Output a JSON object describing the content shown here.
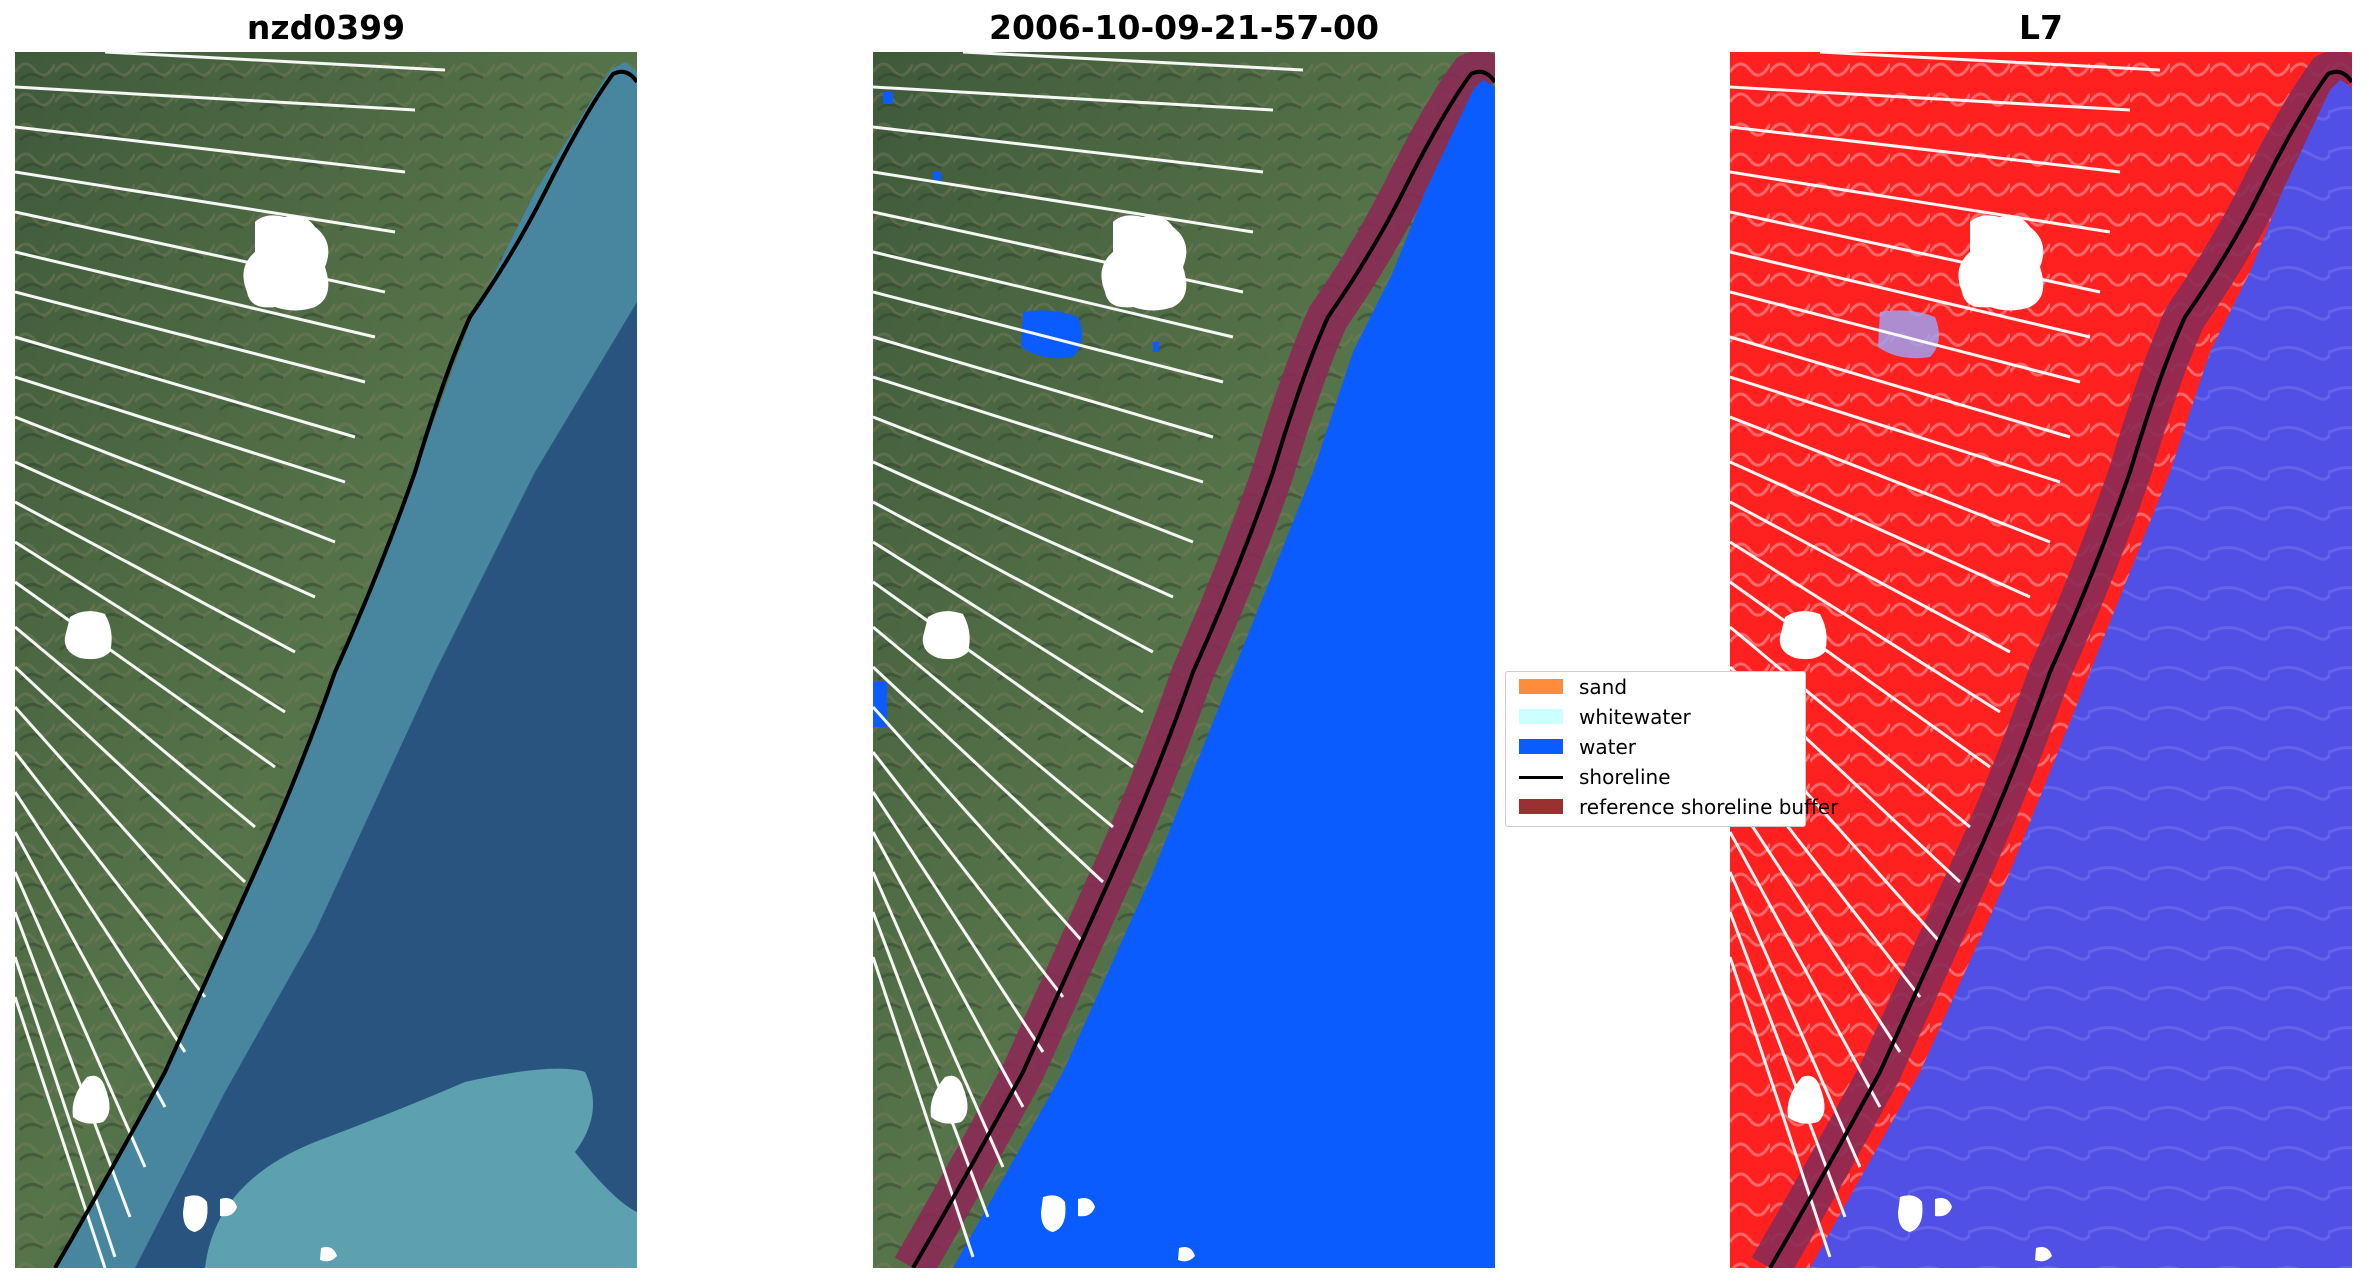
{
  "panels": [
    {
      "title": "nzd0399"
    },
    {
      "title": "2006-10-09-21-57-00"
    },
    {
      "title": "L7"
    }
  ],
  "legend": {
    "items": [
      {
        "label": "sand",
        "color": "#ff8c3a",
        "kind": "patch"
      },
      {
        "label": "whitewater",
        "color": "#ccffff",
        "kind": "patch"
      },
      {
        "label": "water",
        "color": "#0a5cff",
        "kind": "patch"
      },
      {
        "label": "shoreline",
        "color": "#000000",
        "kind": "line"
      },
      {
        "label": "reference shoreline buffer",
        "color": "#9a3030",
        "kind": "patch"
      }
    ]
  },
  "colors": {
    "land_rgb": "#4d6b45",
    "sea_rgb": "#2a5480",
    "sea_turbid": "#4d8fa5",
    "water_class": "#0a5cff",
    "buffer": "#8a2a55",
    "land_ndwi": "#ff2020",
    "sea_ndwi": "#5050e6"
  }
}
